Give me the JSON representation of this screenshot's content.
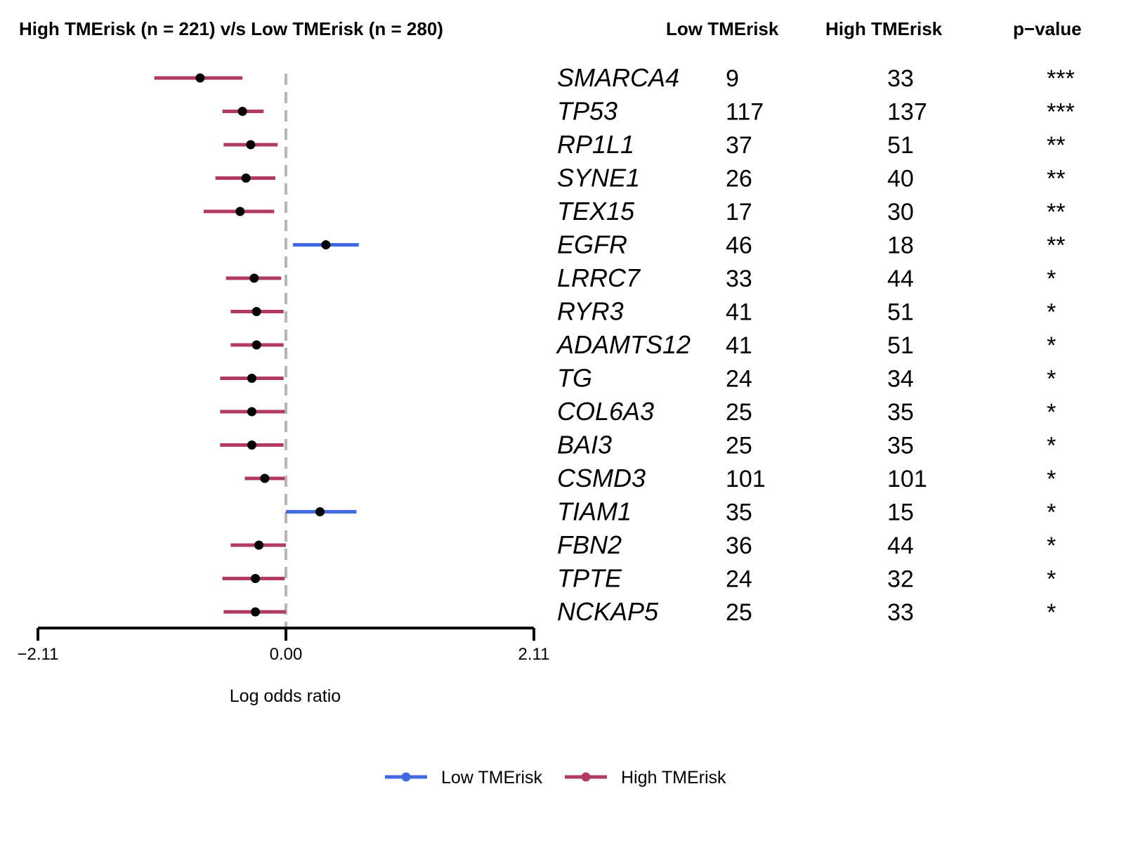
{
  "chart_data": {
    "type": "forest",
    "title": "High TMErisk (n = 221) v/s Low TMErisk (n = 280)",
    "column_headers": [
      "Low TMErisk",
      "High TMErisk",
      "p−value"
    ],
    "xlabel": "Log odds ratio",
    "xlim": [
      -2.11,
      2.11
    ],
    "x_ticks": [
      "−2.11",
      "0.00",
      "2.11"
    ],
    "reference_line": 0,
    "legend": {
      "placement": "bottom",
      "entries": [
        "Low TMErisk",
        "High TMErisk"
      ]
    },
    "colors": {
      "Low TMErisk": "#4169E1",
      "High TMErisk": "#B03A63"
    },
    "rows": [
      {
        "gene": "SMARCA4",
        "low": "9",
        "high": "33",
        "p": "***",
        "or": -0.73,
        "lo": -1.12,
        "hi": -0.37,
        "enriched": "High TMErisk"
      },
      {
        "gene": "TP53",
        "low": "117",
        "high": "137",
        "p": "***",
        "or": -0.37,
        "lo": -0.54,
        "hi": -0.19,
        "enriched": "High TMErisk"
      },
      {
        "gene": "RP1L1",
        "low": "37",
        "high": "51",
        "p": "**",
        "or": -0.3,
        "lo": -0.53,
        "hi": -0.07,
        "enriched": "High TMErisk"
      },
      {
        "gene": "SYNE1",
        "low": "26",
        "high": "40",
        "p": "**",
        "or": -0.34,
        "lo": -0.6,
        "hi": -0.09,
        "enriched": "High TMErisk"
      },
      {
        "gene": "TEX15",
        "low": "17",
        "high": "30",
        "p": "**",
        "or": -0.39,
        "lo": -0.7,
        "hi": -0.1,
        "enriched": "High TMErisk"
      },
      {
        "gene": "EGFR",
        "low": "46",
        "high": "18",
        "p": "**",
        "or": 0.34,
        "lo": 0.06,
        "hi": 0.62,
        "enriched": "Low TMErisk"
      },
      {
        "gene": "LRRC7",
        "low": "33",
        "high": "44",
        "p": "*",
        "or": -0.27,
        "lo": -0.51,
        "hi": -0.04,
        "enriched": "High TMErisk"
      },
      {
        "gene": "RYR3",
        "low": "41",
        "high": "51",
        "p": "*",
        "or": -0.25,
        "lo": -0.47,
        "hi": -0.02,
        "enriched": "High TMErisk"
      },
      {
        "gene": "ADAMTS12",
        "low": "41",
        "high": "51",
        "p": "*",
        "or": -0.25,
        "lo": -0.47,
        "hi": -0.02,
        "enriched": "High TMErisk"
      },
      {
        "gene": "TG",
        "low": "24",
        "high": "34",
        "p": "*",
        "or": -0.29,
        "lo": -0.56,
        "hi": -0.02,
        "enriched": "High TMErisk"
      },
      {
        "gene": "COL6A3",
        "low": "25",
        "high": "35",
        "p": "*",
        "or": -0.29,
        "lo": -0.56,
        "hi": -0.01,
        "enriched": "High TMErisk"
      },
      {
        "gene": "BAI3",
        "low": "25",
        "high": "35",
        "p": "*",
        "or": -0.29,
        "lo": -0.56,
        "hi": -0.02,
        "enriched": "High TMErisk"
      },
      {
        "gene": "CSMD3",
        "low": "101",
        "high": "101",
        "p": "*",
        "or": -0.18,
        "lo": -0.35,
        "hi": -0.01,
        "enriched": "High TMErisk"
      },
      {
        "gene": "TIAM1",
        "low": "35",
        "high": "15",
        "p": "*",
        "or": 0.29,
        "lo": 0.0,
        "hi": 0.6,
        "enriched": "Low TMErisk"
      },
      {
        "gene": "FBN2",
        "low": "36",
        "high": "44",
        "p": "*",
        "or": -0.23,
        "lo": -0.47,
        "hi": 0.0,
        "enriched": "High TMErisk"
      },
      {
        "gene": "TPTE",
        "low": "24",
        "high": "32",
        "p": "*",
        "or": -0.26,
        "lo": -0.54,
        "hi": -0.01,
        "enriched": "High TMErisk"
      },
      {
        "gene": "NCKAP5",
        "low": "25",
        "high": "33",
        "p": "*",
        "or": -0.26,
        "lo": -0.53,
        "hi": 0.0,
        "enriched": "High TMErisk"
      }
    ]
  }
}
